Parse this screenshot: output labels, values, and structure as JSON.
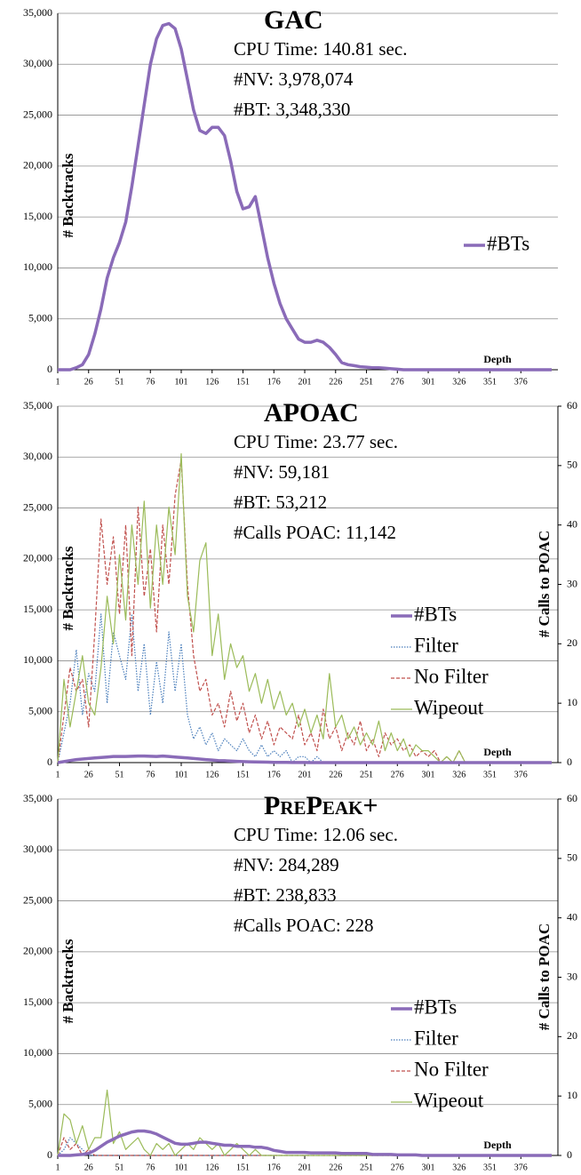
{
  "chart_data": [
    {
      "type": "line",
      "title": "GAC",
      "annotations": [
        "CPU Time: 140.81 sec.",
        "#NV: 3,978,074",
        "#BT: 3,348,330"
      ],
      "ylabel": "# Backtracks",
      "xlabel": "Depth",
      "grid": true,
      "legend": "right",
      "x": [
        1,
        6,
        11,
        16,
        21,
        26,
        31,
        36,
        41,
        46,
        51,
        56,
        61,
        66,
        71,
        76,
        81,
        86,
        91,
        96,
        101,
        106,
        111,
        116,
        121,
        126,
        131,
        136,
        141,
        146,
        151,
        156,
        161,
        166,
        171,
        176,
        181,
        186,
        191,
        196,
        201,
        206,
        211,
        216,
        221,
        226,
        231,
        236,
        241,
        246,
        251,
        256,
        261,
        266,
        271,
        276,
        281,
        286,
        291,
        296,
        301,
        306,
        311,
        316,
        321,
        326,
        331,
        336,
        341,
        346,
        351,
        356,
        361,
        366,
        371,
        376,
        381,
        386,
        391,
        396,
        401
      ],
      "xlim": [
        1,
        406
      ],
      "xticks": [
        1,
        26,
        51,
        76,
        101,
        126,
        151,
        176,
        201,
        226,
        251,
        276,
        301,
        326,
        351,
        376
      ],
      "ylim": [
        0,
        35000
      ],
      "yticks": [
        0,
        {
          "value": 5000,
          "label": "5,000"
        },
        {
          "value": 10000,
          "label": "10,000"
        },
        {
          "value": 15000,
          "label": "15,000"
        },
        {
          "value": 20000,
          "label": "20,000"
        },
        {
          "value": 25000,
          "label": "25,000"
        },
        {
          "value": 30000,
          "label": "30,000"
        },
        {
          "value": 35000,
          "label": "35,000"
        }
      ],
      "series": [
        {
          "name": "#BTs",
          "color": "#8a6bb8",
          "style": "thick",
          "values": [
            0,
            0,
            0,
            200,
            500,
            1500,
            3500,
            6000,
            9000,
            11000,
            12500,
            14500,
            18000,
            22000,
            26000,
            30000,
            32500,
            33800,
            34000,
            33500,
            31500,
            28500,
            25500,
            23500,
            23200,
            23800,
            23800,
            23000,
            20500,
            17500,
            15800,
            16000,
            17000,
            14000,
            11000,
            8500,
            6500,
            5000,
            4000,
            3000,
            2700,
            2700,
            2900,
            2700,
            2200,
            1500,
            700,
            500,
            400,
            300,
            250,
            200,
            200,
            150,
            100,
            50,
            0,
            0,
            0,
            0,
            0,
            0,
            0,
            0,
            0,
            0,
            0,
            0,
            0,
            0,
            0,
            0,
            0,
            0,
            0,
            0,
            0,
            0,
            0,
            0,
            0
          ]
        }
      ]
    },
    {
      "type": "line",
      "title": "APOAC",
      "annotations": [
        "CPU Time: 23.77 sec.",
        "#NV: 59,181",
        "#BT: 53,212",
        "#Calls POAC: 11,142"
      ],
      "ylabel": "# Backtracks",
      "y2label": "# Calls to POAC",
      "xlabel": "Depth",
      "grid": true,
      "legend": "right",
      "x": [
        1,
        6,
        11,
        16,
        21,
        26,
        31,
        36,
        41,
        46,
        51,
        56,
        61,
        66,
        71,
        76,
        81,
        86,
        91,
        96,
        101,
        106,
        111,
        116,
        121,
        126,
        131,
        136,
        141,
        146,
        151,
        156,
        161,
        166,
        171,
        176,
        181,
        186,
        191,
        196,
        201,
        206,
        211,
        216,
        221,
        226,
        231,
        236,
        241,
        246,
        251,
        256,
        261,
        266,
        271,
        276,
        281,
        286,
        291,
        296,
        301,
        306,
        311,
        316,
        321,
        326,
        331,
        336,
        341,
        346,
        351,
        356,
        361,
        366,
        371,
        376,
        381,
        386,
        391,
        396,
        401
      ],
      "xlim": [
        1,
        406
      ],
      "xticks": [
        1,
        26,
        51,
        76,
        101,
        126,
        151,
        176,
        201,
        226,
        251,
        276,
        301,
        326,
        351,
        376
      ],
      "ylim": [
        0,
        35000
      ],
      "yticks": [
        0,
        {
          "value": 5000,
          "label": "5,000"
        },
        {
          "value": 10000,
          "label": "10,000"
        },
        {
          "value": 15000,
          "label": "15,000"
        },
        {
          "value": 20000,
          "label": "20,000"
        },
        {
          "value": 25000,
          "label": "25,000"
        },
        {
          "value": 30000,
          "label": "30,000"
        },
        {
          "value": 35000,
          "label": "35,000"
        }
      ],
      "y2lim": [
        0,
        60
      ],
      "y2ticks": [
        0,
        10,
        20,
        30,
        40,
        50,
        60
      ],
      "series": [
        {
          "name": "#BTs",
          "color": "#8a6bb8",
          "style": "thick",
          "values": [
            0,
            100,
            200,
            300,
            350,
            400,
            450,
            500,
            550,
            600,
            600,
            600,
            620,
            650,
            650,
            620,
            600,
            650,
            600,
            550,
            500,
            450,
            400,
            350,
            300,
            250,
            200,
            180,
            150,
            120,
            100,
            80,
            60,
            50,
            40,
            30,
            20,
            15,
            10,
            5,
            5,
            0,
            0,
            0,
            0,
            0,
            0,
            0,
            0,
            0,
            0,
            0,
            0,
            0,
            0,
            0,
            0,
            0,
            0,
            0,
            0,
            0,
            0,
            0,
            0,
            0,
            0,
            0,
            0,
            0,
            0,
            0,
            0,
            0,
            0,
            0,
            0,
            0,
            0,
            0,
            0
          ]
        },
        {
          "name": "Filter",
          "color": "#4a7ebb",
          "style": "dotted",
          "axis": "y2",
          "values": [
            0,
            5,
            10,
            19,
            8,
            15,
            12,
            25,
            10,
            22,
            18,
            14,
            25,
            12,
            20,
            8,
            17,
            10,
            22,
            12,
            20,
            8,
            4,
            6,
            3,
            5,
            2,
            4,
            3,
            2,
            4,
            2,
            1,
            3,
            1,
            2,
            1,
            2,
            0,
            1,
            1,
            0,
            1,
            0,
            0,
            0,
            0,
            0,
            0,
            0,
            0,
            0,
            0,
            0,
            0,
            0,
            0,
            0,
            0,
            0,
            0,
            0,
            0,
            0,
            0,
            0,
            0,
            0,
            0,
            0,
            0,
            0,
            0,
            0,
            0,
            0,
            0,
            0,
            0,
            0,
            0
          ]
        },
        {
          "name": "No Filter",
          "color": "#c0504d",
          "style": "dashed",
          "axis": "y2",
          "values": [
            0,
            8,
            16,
            12,
            14,
            6,
            22,
            41,
            30,
            38,
            25,
            40,
            18,
            43,
            28,
            36,
            22,
            40,
            30,
            45,
            51,
            30,
            18,
            12,
            14,
            8,
            10,
            6,
            12,
            7,
            10,
            5,
            8,
            4,
            7,
            3,
            6,
            5,
            4,
            8,
            3,
            5,
            2,
            9,
            4,
            6,
            2,
            5,
            3,
            7,
            2,
            4,
            1,
            5,
            3,
            4,
            2,
            3,
            1,
            2,
            1,
            2,
            0,
            1,
            0,
            2,
            0,
            0,
            0,
            0,
            0,
            0,
            0,
            0,
            0,
            0,
            0,
            0,
            0,
            0,
            0
          ]
        },
        {
          "name": "Wipeout",
          "color": "#9bbb59",
          "style": "solid",
          "axis": "y2",
          "values": [
            0,
            14,
            6,
            12,
            18,
            10,
            8,
            16,
            28,
            20,
            35,
            24,
            40,
            30,
            44,
            26,
            40,
            30,
            43,
            35,
            52,
            28,
            22,
            34,
            37,
            18,
            25,
            14,
            20,
            16,
            18,
            12,
            15,
            10,
            14,
            9,
            12,
            8,
            10,
            6,
            9,
            5,
            8,
            4,
            15,
            6,
            8,
            4,
            6,
            3,
            5,
            3,
            7,
            2,
            5,
            2,
            4,
            1,
            3,
            2,
            2,
            1,
            0,
            1,
            0,
            2,
            0,
            0,
            0,
            0,
            0,
            0,
            0,
            0,
            0,
            0,
            0,
            0,
            0,
            0,
            0
          ]
        }
      ]
    },
    {
      "type": "line",
      "title": "PrePeak+",
      "annotations": [
        "CPU Time: 12.06 sec.",
        "#NV: 284,289",
        "#BT: 238,833",
        "#Calls POAC: 228"
      ],
      "ylabel": "# Backtracks",
      "y2label": "# Calls to POAC",
      "xlabel": "Depth",
      "grid": true,
      "legend": "right",
      "x": [
        1,
        6,
        11,
        16,
        21,
        26,
        31,
        36,
        41,
        46,
        51,
        56,
        61,
        66,
        71,
        76,
        81,
        86,
        91,
        96,
        101,
        106,
        111,
        116,
        121,
        126,
        131,
        136,
        141,
        146,
        151,
        156,
        161,
        166,
        171,
        176,
        181,
        186,
        191,
        196,
        201,
        206,
        211,
        216,
        221,
        226,
        231,
        236,
        241,
        246,
        251,
        256,
        261,
        266,
        271,
        276,
        281,
        286,
        291,
        296,
        301,
        306,
        311,
        316,
        321,
        326,
        331,
        336,
        341,
        346,
        351,
        356,
        361,
        366,
        371,
        376,
        381,
        386,
        391,
        396,
        401
      ],
      "xlim": [
        1,
        406
      ],
      "xticks": [
        1,
        26,
        51,
        76,
        101,
        126,
        151,
        176,
        201,
        226,
        251,
        276,
        301,
        326,
        351,
        376
      ],
      "ylim": [
        0,
        35000
      ],
      "yticks": [
        0,
        {
          "value": 5000,
          "label": "5,000"
        },
        {
          "value": 10000,
          "label": "10,000"
        },
        {
          "value": 15000,
          "label": "15,000"
        },
        {
          "value": 20000,
          "label": "20,000"
        },
        {
          "value": 25000,
          "label": "25,000"
        },
        {
          "value": 30000,
          "label": "30,000"
        },
        {
          "value": 35000,
          "label": "35,000"
        }
      ],
      "y2lim": [
        0,
        60
      ],
      "y2ticks": [
        0,
        10,
        20,
        30,
        40,
        50,
        60
      ],
      "series": [
        {
          "name": "#BTs",
          "color": "#8a6bb8",
          "style": "thick",
          "values": [
            0,
            0,
            0,
            50,
            100,
            200,
            500,
            900,
            1300,
            1600,
            1900,
            2100,
            2300,
            2400,
            2400,
            2300,
            2100,
            1800,
            1500,
            1200,
            1100,
            1100,
            1200,
            1300,
            1300,
            1200,
            1100,
            1000,
            1000,
            900,
            900,
            900,
            800,
            800,
            700,
            500,
            400,
            300,
            300,
            300,
            300,
            250,
            250,
            250,
            250,
            250,
            200,
            200,
            200,
            200,
            200,
            100,
            100,
            100,
            100,
            50,
            50,
            50,
            50,
            0,
            0,
            0,
            0,
            0,
            0,
            0,
            0,
            0,
            0,
            0,
            0,
            0,
            0,
            0,
            0,
            0,
            0,
            0,
            0,
            0,
            0
          ]
        },
        {
          "name": "Filter",
          "color": "#4a7ebb",
          "style": "dotted",
          "axis": "y2",
          "values": [
            0,
            1,
            3,
            2,
            1,
            0,
            0,
            0,
            0,
            0,
            0,
            0,
            0,
            0,
            0,
            0,
            0,
            0,
            0,
            0,
            0,
            0,
            0,
            0,
            0,
            0,
            0,
            0,
            0,
            0,
            0,
            0,
            0,
            0,
            0,
            0,
            0,
            0,
            0,
            0,
            0,
            0,
            0,
            0,
            0,
            0,
            0,
            0,
            0,
            0,
            0,
            0,
            0,
            0,
            0,
            0,
            0,
            0,
            0,
            0,
            0,
            0,
            0,
            0,
            0,
            0,
            0,
            0,
            0,
            0,
            0,
            0,
            0,
            0,
            0,
            0,
            0,
            0,
            0,
            0,
            0
          ]
        },
        {
          "name": "No Filter",
          "color": "#c0504d",
          "style": "dashed",
          "axis": "y2",
          "values": [
            0,
            3,
            1,
            2,
            0,
            1,
            0,
            0,
            0,
            0,
            0,
            0,
            0,
            0,
            0,
            0,
            0,
            0,
            0,
            0,
            0,
            0,
            0,
            0,
            0,
            0,
            0,
            0,
            0,
            0,
            0,
            0,
            0,
            0,
            0,
            0,
            0,
            0,
            0,
            0,
            0,
            0,
            0,
            0,
            0,
            0,
            0,
            0,
            0,
            0,
            0,
            0,
            0,
            0,
            0,
            0,
            0,
            0,
            0,
            0,
            0,
            0,
            0,
            0,
            0,
            0,
            0,
            0,
            0,
            0,
            0,
            0,
            0,
            0,
            0,
            0,
            0,
            0,
            0,
            0,
            0
          ]
        },
        {
          "name": "Wipeout",
          "color": "#9bbb59",
          "style": "solid",
          "axis": "y2",
          "values": [
            0,
            7,
            6,
            2,
            5,
            1,
            3,
            3,
            11,
            2,
            4,
            1,
            2,
            3,
            1,
            0,
            2,
            1,
            2,
            0,
            1,
            2,
            1,
            3,
            2,
            1,
            2,
            0,
            1,
            2,
            1,
            0,
            1,
            0,
            0,
            0,
            0,
            0,
            0,
            0,
            0,
            0,
            0,
            0,
            0,
            0,
            0,
            0,
            0,
            0,
            0,
            0,
            0,
            0,
            0,
            0,
            0,
            0,
            0,
            0,
            0,
            0,
            0,
            0,
            0,
            0,
            0,
            0,
            0,
            0,
            0,
            0,
            0,
            0,
            0,
            0,
            0,
            0,
            0,
            0,
            0
          ]
        }
      ]
    }
  ]
}
